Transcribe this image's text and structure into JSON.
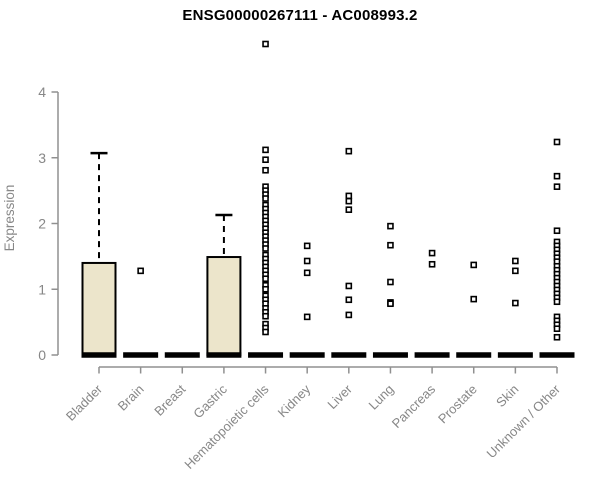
{
  "header": {
    "title": "ENSG00000267111 - AC008993.2"
  },
  "colors": {
    "box_fill": "#ece5cb",
    "box_stroke": "#000000",
    "median": "#000000",
    "outlier_stroke": "#000000",
    "outlier_fill": "#ffffff",
    "axis_line": "#909090",
    "axis_text": "#878787",
    "title_text": "#000000",
    "background": "#ffffff"
  },
  "chart_data": {
    "type": "boxplot",
    "title": "ENSG00000267111 - AC008993.2",
    "xlabel": "",
    "ylabel": "Expression",
    "ylim": [
      0,
      4
    ],
    "yticks": [
      0,
      1,
      2,
      3,
      4
    ],
    "grid": false,
    "legend": "none",
    "x_tick_rotation_deg": 45,
    "categories": [
      "Bladder",
      "Brain",
      "Breast",
      "Gastric",
      "Hematopoietic cells",
      "Kidney",
      "Liver",
      "Lung",
      "Pancreas",
      "Prostate",
      "Skin",
      "Unknown / Other"
    ],
    "series": [
      {
        "name": "Bladder",
        "q1": 0,
        "median": 0,
        "q3": 1.4,
        "whisker_low": 0,
        "whisker_high": 3.07,
        "outliers": []
      },
      {
        "name": "Brain",
        "q1": 0,
        "median": 0,
        "q3": 0,
        "whisker_low": 0,
        "whisker_high": 0,
        "outliers": [
          1.28
        ]
      },
      {
        "name": "Breast",
        "q1": 0,
        "median": 0,
        "q3": 0,
        "whisker_low": 0,
        "whisker_high": 0,
        "outliers": []
      },
      {
        "name": "Gastric",
        "q1": 0,
        "median": 0,
        "q3": 1.49,
        "whisker_low": 0,
        "whisker_high": 2.13,
        "outliers": []
      },
      {
        "name": "Hematopoietic cells",
        "q1": 0,
        "median": 0,
        "q3": 0,
        "whisker_low": 0,
        "whisker_high": 0,
        "outliers": [
          4.73,
          3.12,
          2.97,
          2.81,
          2.56,
          2.5,
          2.44,
          2.38,
          2.28,
          2.22,
          2.16,
          2.1,
          2.04,
          1.98,
          1.92,
          1.86,
          1.8,
          1.74,
          1.68,
          1.62,
          1.52,
          1.46,
          1.4,
          1.34,
          1.28,
          1.22,
          1.16,
          1.06,
          1.0,
          0.9,
          0.84,
          0.78,
          0.71,
          0.65,
          0.59,
          0.47,
          0.41,
          0.35
        ]
      },
      {
        "name": "Kidney",
        "q1": 0,
        "median": 0,
        "q3": 0,
        "whisker_low": 0,
        "whisker_high": 0,
        "outliers": [
          1.66,
          1.43,
          1.25,
          0.58
        ]
      },
      {
        "name": "Liver",
        "q1": 0,
        "median": 0,
        "q3": 0,
        "whisker_low": 0,
        "whisker_high": 0,
        "outliers": [
          3.1,
          2.42,
          2.34,
          2.21,
          1.05,
          0.84,
          0.61
        ]
      },
      {
        "name": "Lung",
        "q1": 0,
        "median": 0,
        "q3": 0,
        "whisker_low": 0,
        "whisker_high": 0,
        "outliers": [
          1.96,
          1.67,
          1.11,
          0.8,
          0.78
        ]
      },
      {
        "name": "Pancreas",
        "q1": 0,
        "median": 0,
        "q3": 0,
        "whisker_low": 0,
        "whisker_high": 0,
        "outliers": [
          1.55,
          1.38
        ]
      },
      {
        "name": "Prostate",
        "q1": 0,
        "median": 0,
        "q3": 0,
        "whisker_low": 0,
        "whisker_high": 0,
        "outliers": [
          1.37,
          0.85
        ]
      },
      {
        "name": "Skin",
        "q1": 0,
        "median": 0,
        "q3": 0,
        "whisker_low": 0,
        "whisker_high": 0,
        "outliers": [
          1.43,
          1.28,
          0.79
        ]
      },
      {
        "name": "Unknown / Other",
        "q1": 0,
        "median": 0,
        "q3": 0,
        "whisker_low": 0,
        "whisker_high": 0,
        "outliers": [
          3.24,
          2.72,
          2.56,
          1.89,
          1.72,
          1.66,
          1.6,
          1.54,
          1.48,
          1.42,
          1.35,
          1.29,
          1.23,
          1.17,
          1.11,
          1.05,
          0.99,
          0.93,
          0.87,
          0.81,
          0.58,
          0.52,
          0.46,
          0.4,
          0.27
        ]
      }
    ]
  }
}
